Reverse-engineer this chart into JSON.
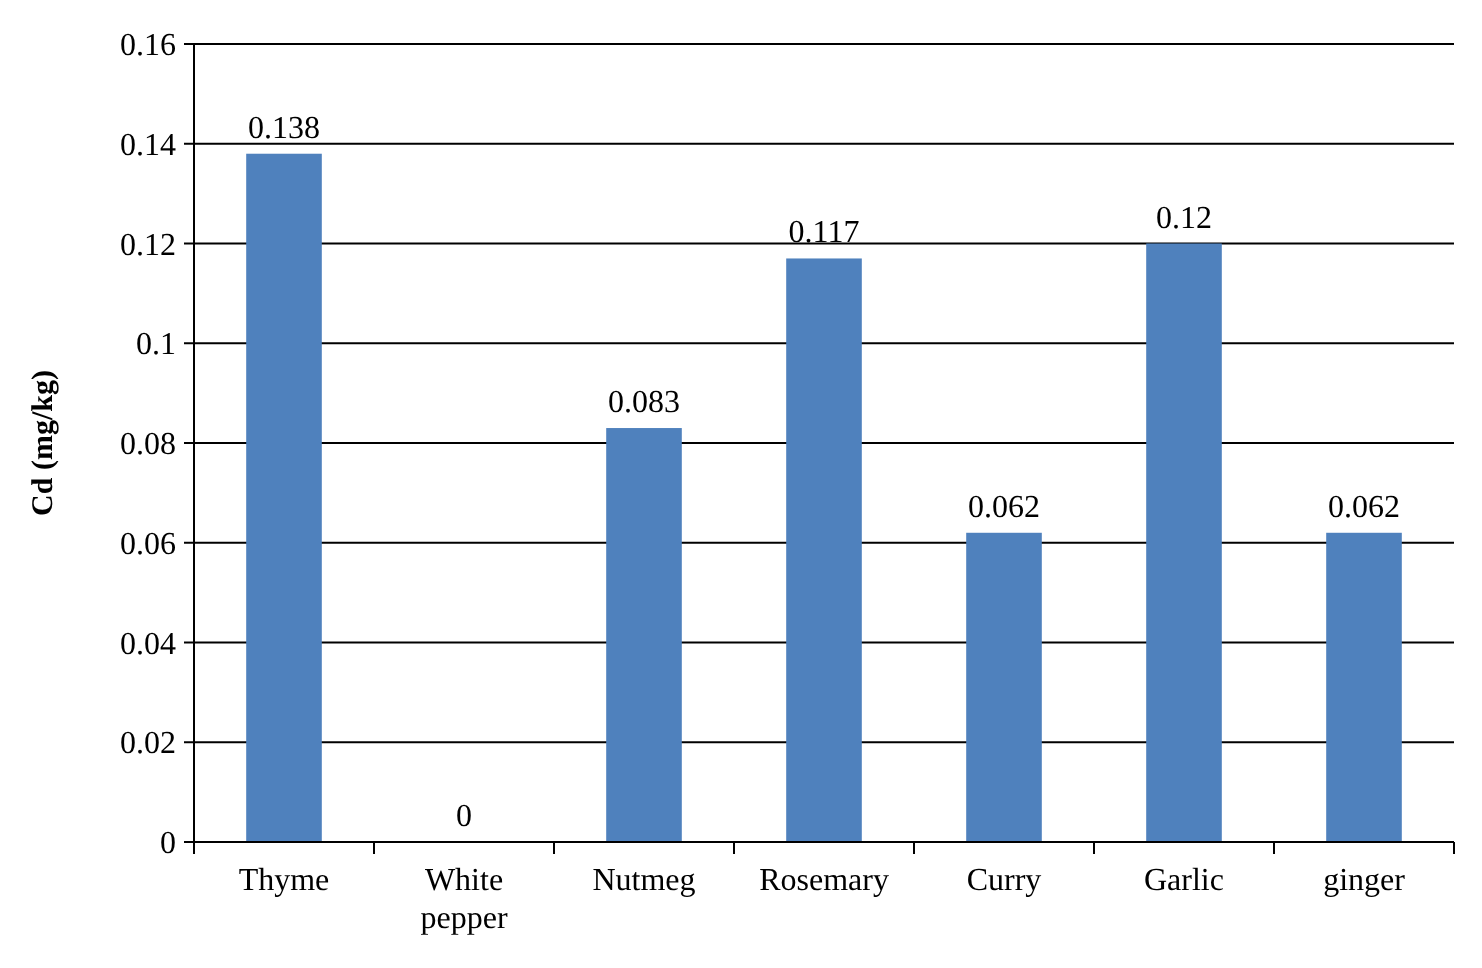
{
  "chart_data": {
    "type": "bar",
    "ylabel": "Cd (mg/kg)",
    "categories": [
      "Thyme",
      "White pepper",
      "Nutmeg",
      "Rosemary",
      "Curry",
      "Garlic",
      "ginger"
    ],
    "values": [
      0.138,
      0,
      0.083,
      0.117,
      0.062,
      0.12,
      0.062
    ],
    "color": "#4f81bd",
    "ylim": [
      0,
      0.16
    ],
    "yticks": [
      0,
      0.02,
      0.04,
      0.06,
      0.08,
      0.1,
      0.12,
      0.14,
      0.16
    ],
    "grid": "y",
    "data_labels": true
  }
}
